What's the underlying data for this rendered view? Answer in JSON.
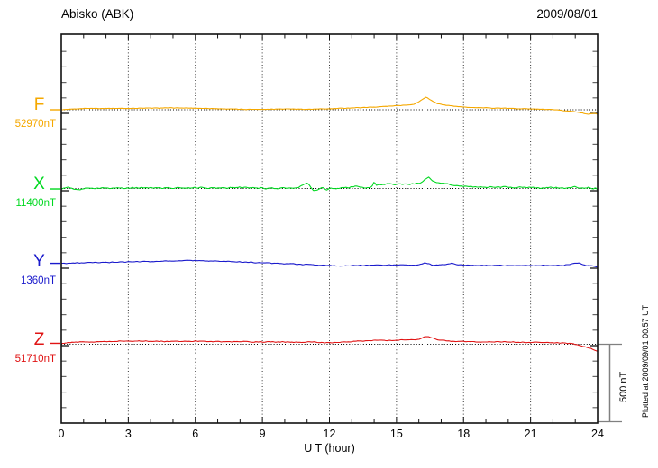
{
  "header": {
    "title": "Abisko (ABK)",
    "date": "2009/08/01"
  },
  "annotations": {
    "plotted_at": "Plotted at 2009/09/01 00:57 UT"
  },
  "chart_data": {
    "type": "line",
    "title": "Abisko (ABK)",
    "date": "2009/08/01",
    "xlabel": "U T (hour)",
    "x_range": [
      0,
      24
    ],
    "x_ticks": [
      0,
      3,
      6,
      9,
      12,
      15,
      18,
      21,
      24
    ],
    "grid_hours": [
      3,
      6,
      9,
      12,
      15,
      18,
      21
    ],
    "y_axis": {
      "minor_tick_nT": 100,
      "major_tick_nT": 500
    },
    "scale_bar": {
      "label": "500 nT",
      "nanotesla": 500
    },
    "series": [
      {
        "id": "F",
        "label": "F",
        "base_value": "52970nT",
        "baseline_nT": 52970,
        "color": "#F5A800",
        "noise_nT": 2,
        "points_hour_dev_nT": [
          [
            0,
            0
          ],
          [
            0.5,
            3
          ],
          [
            1,
            9
          ],
          [
            3,
            9
          ],
          [
            5,
            12
          ],
          [
            6.5,
            9
          ],
          [
            8,
            3
          ],
          [
            9,
            3
          ],
          [
            10,
            6
          ],
          [
            11,
            3
          ],
          [
            12,
            6
          ],
          [
            13,
            12
          ],
          [
            14,
            17
          ],
          [
            15,
            26
          ],
          [
            15.8,
            35
          ],
          [
            16.2,
            70
          ],
          [
            16.35,
            81
          ],
          [
            16.5,
            64
          ],
          [
            16.8,
            41
          ],
          [
            17.2,
            29
          ],
          [
            18,
            17
          ],
          [
            19,
            12
          ],
          [
            20,
            9
          ],
          [
            21,
            6
          ],
          [
            22,
            0
          ],
          [
            23,
            -12
          ],
          [
            23.6,
            -29
          ],
          [
            23.85,
            -23
          ],
          [
            24,
            -29
          ]
        ]
      },
      {
        "id": "X",
        "label": "X",
        "base_value": "11400nT",
        "baseline_nT": 11400,
        "color": "#00D820",
        "noise_nT": 5,
        "points_hour_dev_nT": [
          [
            0,
            -3
          ],
          [
            0.3,
            6
          ],
          [
            0.7,
            -9
          ],
          [
            1,
            0
          ],
          [
            2,
            3
          ],
          [
            3,
            3
          ],
          [
            4,
            6
          ],
          [
            5,
            3
          ],
          [
            6,
            6
          ],
          [
            7,
            3
          ],
          [
            8,
            6
          ],
          [
            9,
            3
          ],
          [
            9.5,
            0
          ],
          [
            10,
            3
          ],
          [
            10.5,
            0
          ],
          [
            10.85,
            23
          ],
          [
            11,
            41
          ],
          [
            11.15,
            6
          ],
          [
            11.3,
            -15
          ],
          [
            11.5,
            -6
          ],
          [
            11.7,
            3
          ],
          [
            11.9,
            -9
          ],
          [
            12.1,
            3
          ],
          [
            12.3,
            -6
          ],
          [
            12.6,
            9
          ],
          [
            12.9,
            6
          ],
          [
            13.1,
            15
          ],
          [
            13.4,
            12
          ],
          [
            13.6,
            3
          ],
          [
            13.9,
            6
          ],
          [
            14,
            47
          ],
          [
            14.1,
            23
          ],
          [
            14.3,
            26
          ],
          [
            14.6,
            29
          ],
          [
            14.9,
            23
          ],
          [
            15.1,
            32
          ],
          [
            15.35,
            26
          ],
          [
            15.6,
            29
          ],
          [
            15.9,
            32
          ],
          [
            16.1,
            35
          ],
          [
            16.3,
            64
          ],
          [
            16.45,
            70
          ],
          [
            16.6,
            47
          ],
          [
            16.8,
            38
          ],
          [
            17.1,
            35
          ],
          [
            17.5,
            23
          ],
          [
            17.8,
            15
          ],
          [
            18.2,
            12
          ],
          [
            19,
            9
          ],
          [
            20,
            9
          ],
          [
            21,
            6
          ],
          [
            21.5,
            3
          ],
          [
            22,
            6
          ],
          [
            22.6,
            3
          ],
          [
            23,
            9
          ],
          [
            23.4,
            3
          ],
          [
            23.6,
            9
          ],
          [
            23.8,
            -6
          ],
          [
            23.9,
            3
          ],
          [
            24,
            -12
          ]
        ]
      },
      {
        "id": "Y",
        "label": "Y",
        "base_value": "1360nT",
        "baseline_nT": 1360,
        "color": "#1A1ACC",
        "noise_nT": 3,
        "points_hour_dev_nT": [
          [
            0,
            17
          ],
          [
            1,
            20
          ],
          [
            2,
            23
          ],
          [
            3,
            26
          ],
          [
            4,
            29
          ],
          [
            5,
            32
          ],
          [
            5.7,
            35
          ],
          [
            6.5,
            32
          ],
          [
            7.5,
            29
          ],
          [
            8.5,
            23
          ],
          [
            9.5,
            17
          ],
          [
            10.5,
            12
          ],
          [
            11.5,
            6
          ],
          [
            12,
            3
          ],
          [
            12.5,
            0
          ],
          [
            13,
            3
          ],
          [
            13.5,
            3
          ],
          [
            14,
            6
          ],
          [
            15,
            6
          ],
          [
            16,
            6
          ],
          [
            16.25,
            20
          ],
          [
            16.4,
            17
          ],
          [
            16.6,
            6
          ],
          [
            17.2,
            9
          ],
          [
            17.45,
            17
          ],
          [
            17.7,
            6
          ],
          [
            18.5,
            3
          ],
          [
            19.5,
            3
          ],
          [
            20.5,
            3
          ],
          [
            21.5,
            3
          ],
          [
            22.5,
            3
          ],
          [
            23,
            20
          ],
          [
            23.2,
            17
          ],
          [
            23.5,
            3
          ],
          [
            23.8,
            0
          ],
          [
            24,
            -9
          ]
        ]
      },
      {
        "id": "Z",
        "label": "Z",
        "base_value": "51710nT",
        "baseline_nT": 51710,
        "color": "#E01414",
        "noise_nT": 3,
        "points_hour_dev_nT": [
          [
            0,
            6
          ],
          [
            0.5,
            12
          ],
          [
            1,
            15
          ],
          [
            2,
            17
          ],
          [
            3,
            20
          ],
          [
            4,
            20
          ],
          [
            5,
            17
          ],
          [
            5.5,
            20
          ],
          [
            6,
            20
          ],
          [
            7,
            17
          ],
          [
            8,
            17
          ],
          [
            9,
            15
          ],
          [
            10,
            15
          ],
          [
            10.8,
            12
          ],
          [
            11.3,
            15
          ],
          [
            11.8,
            9
          ],
          [
            12.2,
            12
          ],
          [
            13,
            17
          ],
          [
            14,
            26
          ],
          [
            14.5,
            23
          ],
          [
            15,
            26
          ],
          [
            15.5,
            29
          ],
          [
            16,
            32
          ],
          [
            16.3,
            49
          ],
          [
            16.45,
            47
          ],
          [
            16.7,
            35
          ],
          [
            17,
            26
          ],
          [
            17.5,
            20
          ],
          [
            18,
            17
          ],
          [
            19,
            15
          ],
          [
            20,
            15
          ],
          [
            21,
            12
          ],
          [
            21.8,
            12
          ],
          [
            22.3,
            9
          ],
          [
            22.8,
            6
          ],
          [
            23.2,
            -6
          ],
          [
            23.6,
            -23
          ],
          [
            24,
            -44
          ]
        ]
      }
    ]
  }
}
